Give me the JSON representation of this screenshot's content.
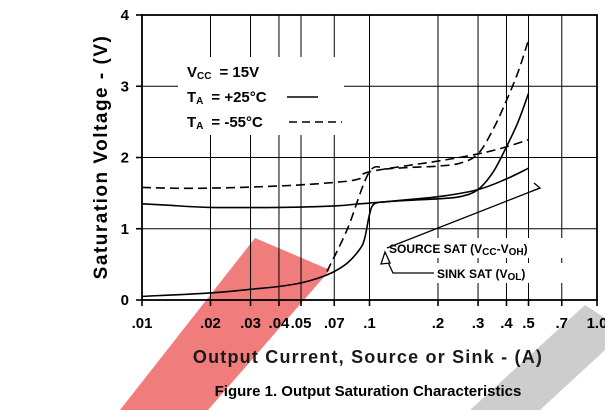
{
  "chart_data": {
    "type": "line",
    "title": "Figure 1. Output Saturation Characteristics",
    "xlabel": "Output Current, Source or Sink - (A)",
    "ylabel": "Saturation Voltage - (V)",
    "xscale": "log",
    "xlim": [
      0.01,
      1.0
    ],
    "ylim": [
      0,
      4
    ],
    "grid": true,
    "x_ticks": [
      0.01,
      0.02,
      0.03,
      0.04,
      0.05,
      0.07,
      0.1,
      0.2,
      0.3,
      0.4,
      0.5,
      0.7,
      1.0
    ],
    "x_tick_labels": [
      ".01",
      ".02",
      ".03",
      ".04",
      ".05",
      ".07",
      ".1",
      ".2",
      ".3",
      ".4",
      ".5",
      ".7",
      "1.0"
    ],
    "y_ticks": [
      0,
      1,
      2,
      3,
      4
    ],
    "y_tick_labels": [
      "0",
      "1",
      "2",
      "3",
      "4"
    ],
    "conditions": {
      "vcc": {
        "main": "V",
        "sub": "CC",
        "value": "= 15V"
      },
      "ta_25": {
        "main": "T",
        "sub": "A",
        "value": "= +25°C"
      },
      "ta_55": {
        "main": "T",
        "sub": "A",
        "value": "= -55°C"
      }
    },
    "series": [
      {
        "condition": "+25°C",
        "style": "solid",
        "x": [
          0.01,
          0.013,
          0.02,
          0.04,
          0.07,
          0.09,
          0.1,
          0.2,
          0.3,
          0.4,
          0.5
        ],
        "y": [
          1.35,
          1.33,
          1.3,
          1.3,
          1.32,
          1.35,
          1.36,
          1.45,
          1.55,
          1.7,
          1.85
        ]
      },
      {
        "condition": "-55°C",
        "style": "dashed",
        "x": [
          0.01,
          0.013,
          0.02,
          0.04,
          0.07,
          0.09,
          0.1,
          0.2,
          0.3,
          0.4,
          0.5
        ],
        "y": [
          1.58,
          1.57,
          1.57,
          1.6,
          1.65,
          1.7,
          1.8,
          1.95,
          2.05,
          2.15,
          2.25
        ]
      },
      {
        "condition": "+25°C",
        "style": "solid",
        "x": [
          0.01,
          0.02,
          0.03,
          0.04,
          0.05,
          0.06,
          0.07,
          0.08,
          0.09,
          0.095,
          0.1,
          0.105,
          0.12,
          0.15,
          0.2,
          0.25,
          0.3,
          0.35,
          0.4,
          0.45,
          0.5
        ],
        "y": [
          0.05,
          0.1,
          0.15,
          0.19,
          0.24,
          0.31,
          0.4,
          0.52,
          0.7,
          0.85,
          1.2,
          1.35,
          1.38,
          1.4,
          1.42,
          1.45,
          1.55,
          1.8,
          2.15,
          2.5,
          2.9
        ]
      },
      {
        "condition": "-55°C",
        "style": "dashed",
        "x": [
          0.065,
          0.08,
          0.1,
          0.12,
          0.15,
          0.2,
          0.25,
          0.3,
          0.35,
          0.4,
          0.45,
          0.5
        ],
        "y": [
          0.4,
          1.0,
          1.8,
          1.84,
          1.86,
          1.88,
          1.92,
          2.05,
          2.4,
          2.8,
          3.2,
          3.65
        ]
      }
    ],
    "annotations": [
      {
        "main": "SOURCE SAT (V",
        "sub": "CC",
        "main2": "-V",
        "sub2": "OH",
        "end": ")"
      },
      {
        "main": "SINK SAT (V",
        "sub": "OL",
        "end": ")"
      }
    ]
  },
  "colors": {
    "line": "#000000",
    "grid": "#000000",
    "watermark_red": "#f06e6e",
    "watermark_grey": "#c8c8c8"
  }
}
